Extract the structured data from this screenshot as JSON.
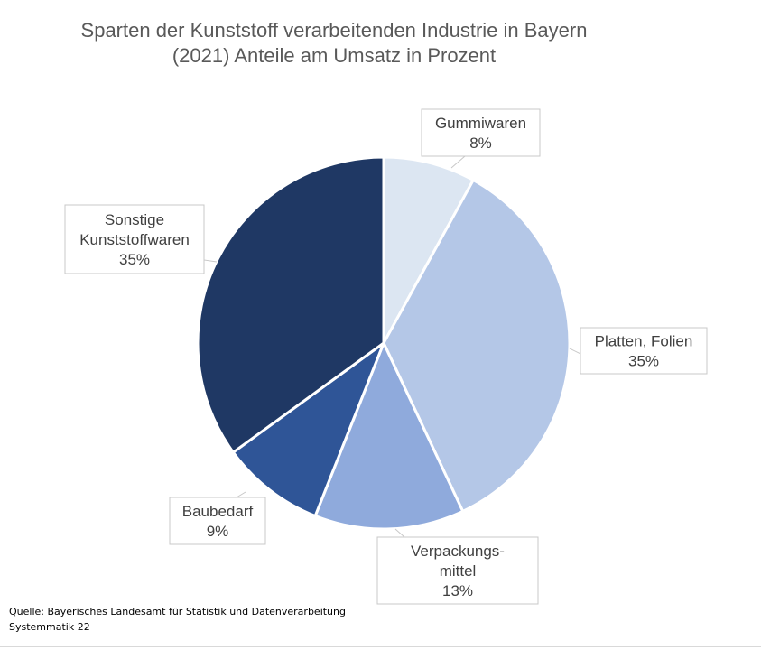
{
  "chart_data": {
    "type": "pie",
    "title": "Sparten der Kunststoff verarbeitenden Industrie in Bayern\n(2021) Anteile am Umsatz in Prozent",
    "slices": [
      {
        "label": "Gummiwaren",
        "value": 8,
        "value_label": "8%",
        "color": "#dce6f2"
      },
      {
        "label": "Platten, Folien",
        "value": 35,
        "value_label": "35%",
        "color": "#b4c7e7"
      },
      {
        "label": "Verpackungs-\nmittel",
        "value": 13,
        "value_label": "13%",
        "color": "#8faadc"
      },
      {
        "label": "Baubedarf",
        "value": 9,
        "value_label": "9%",
        "color": "#2f5597"
      },
      {
        "label": "Sonstige\nKunststoffwaren",
        "value": 35,
        "value_label": "35%",
        "color": "#1f3864"
      }
    ],
    "legend": "none"
  },
  "source": {
    "line1": "Quelle:  Bayerisches Landesamt für Statistik und Datenverarbeitung",
    "line2": "Systemmatik 22"
  }
}
